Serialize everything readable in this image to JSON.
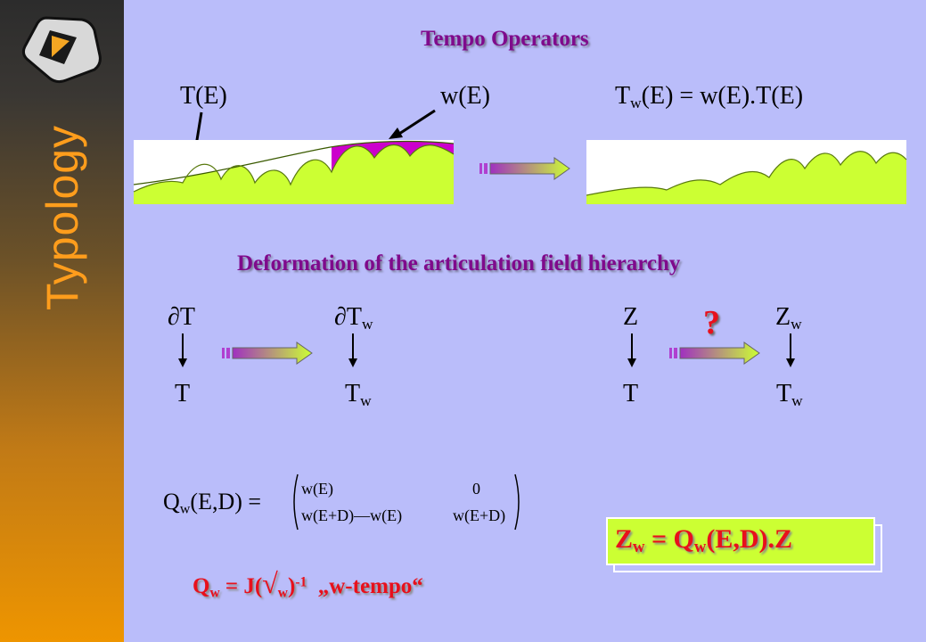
{
  "sidebar": {
    "title": "Typology",
    "logo": "triangle-logo-icon"
  },
  "headings": {
    "tempo": "Tempo Operators",
    "deformation": "Deformation of the articulation field hierarchy"
  },
  "top_labels": {
    "t_of_e": "T(E)",
    "w_of_e": "w(E)",
    "tw_base": "T",
    "tw_sub": "w",
    "tw_rhs": "(E) = w(E).T(E)"
  },
  "hierarchy_left": {
    "d": "∂",
    "t": "T",
    "w": "w"
  },
  "hierarchy_right": {
    "z": "Z",
    "t": "T",
    "w": "w",
    "question": "?"
  },
  "matrix": {
    "lhs_base": "Q",
    "lhs_sub": "w",
    "lhs_rest": "(E,D) =",
    "a11": "w(E)",
    "a12": "0",
    "a21": "w(E+D)—w(E)",
    "a22": "w(E+D)"
  },
  "boxed_formula": {
    "z": "Z",
    "w": "w",
    "mid": " = Q",
    "w2": "w",
    "rest": "(E,D).Z"
  },
  "tempo_formula": {
    "q": "Q",
    "w": "w",
    "eq": " = J(",
    "sqrt": "√",
    "w2": "w",
    "close": ")",
    "exp": "-1",
    "quote": "„w-tempo“"
  },
  "colors": {
    "background": "#babdfa",
    "curve_fill": "#ccff33",
    "w_fill": "#cc00cc",
    "heading": "#7f0a8c",
    "red": "#e8101c",
    "sidebar_title": "#ff9d1c"
  },
  "icons": {
    "arrow": "gradient-arrow-icon",
    "down": "down-arrow-icon"
  }
}
